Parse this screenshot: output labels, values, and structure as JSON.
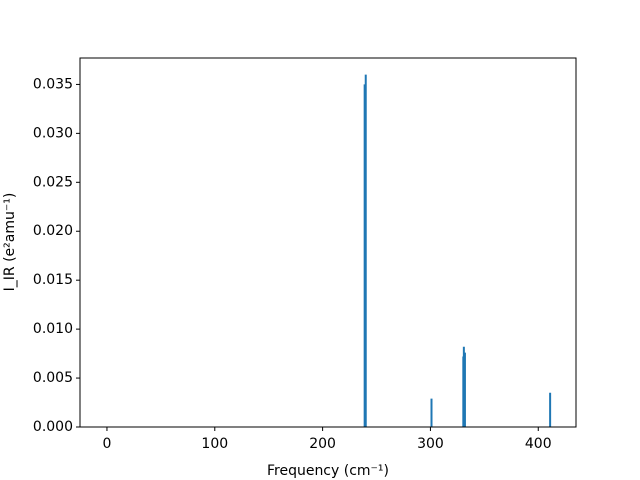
{
  "chart_data": {
    "type": "bar",
    "xlabel": "Frequency (cm⁻¹)",
    "ylabel": "I_IR (e²amu⁻¹)",
    "x": [
      239,
      240,
      301,
      330.5,
      331,
      332,
      411
    ],
    "values": [
      0.035,
      0.036,
      0.0029,
      0.0072,
      0.0082,
      0.0076,
      0.0035
    ],
    "color": "#1f77b4",
    "xlim": [
      -25,
      435
    ],
    "xticks": [
      0,
      100,
      200,
      300,
      400
    ],
    "ylim": [
      0,
      0.0377
    ],
    "yticks": [
      {
        "value": 0,
        "label": "0.000"
      },
      {
        "value": 0.005,
        "label": "0.005"
      },
      {
        "value": 0.01,
        "label": "0.010"
      },
      {
        "value": 0.015,
        "label": "0.015"
      },
      {
        "value": 0.02,
        "label": "0.020"
      },
      {
        "value": 0.025,
        "label": "0.025"
      },
      {
        "value": 0.03,
        "label": "0.030"
      },
      {
        "value": 0.035,
        "label": "0.035"
      }
    ]
  }
}
